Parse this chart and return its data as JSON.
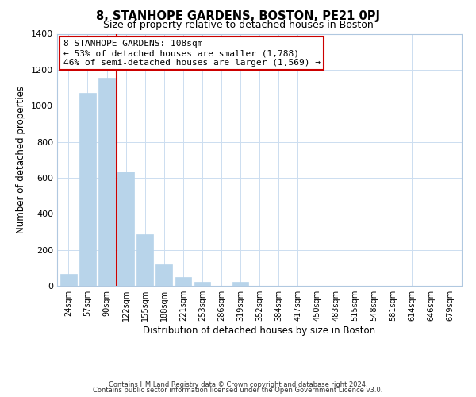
{
  "title": "8, STANHOPE GARDENS, BOSTON, PE21 0PJ",
  "subtitle": "Size of property relative to detached houses in Boston",
  "xlabel": "Distribution of detached houses by size in Boston",
  "ylabel": "Number of detached properties",
  "categories": [
    "24sqm",
    "57sqm",
    "90sqm",
    "122sqm",
    "155sqm",
    "188sqm",
    "221sqm",
    "253sqm",
    "286sqm",
    "319sqm",
    "352sqm",
    "384sqm",
    "417sqm",
    "450sqm",
    "483sqm",
    "515sqm",
    "548sqm",
    "581sqm",
    "614sqm",
    "646sqm",
    "679sqm"
  ],
  "values": [
    65,
    1070,
    1155,
    635,
    285,
    120,
    48,
    22,
    0,
    22,
    0,
    0,
    0,
    0,
    0,
    0,
    0,
    0,
    0,
    0,
    0
  ],
  "bar_color": "#b8d4ea",
  "bar_edge_color": "#b8d4ea",
  "vline_x": 2.5,
  "vline_color": "#cc0000",
  "annotation_title": "8 STANHOPE GARDENS: 108sqm",
  "annotation_line1": "← 53% of detached houses are smaller (1,788)",
  "annotation_line2": "46% of semi-detached houses are larger (1,569) →",
  "annotation_box_color": "#ffffff",
  "annotation_box_edge": "#cc0000",
  "ylim": [
    0,
    1400
  ],
  "yticks": [
    0,
    200,
    400,
    600,
    800,
    1000,
    1200,
    1400
  ],
  "footer1": "Contains HM Land Registry data © Crown copyright and database right 2024.",
  "footer2": "Contains public sector information licensed under the Open Government Licence v3.0.",
  "bg_color": "#ffffff",
  "grid_color": "#ccddf0",
  "title_fontsize": 10.5,
  "subtitle_fontsize": 9,
  "annotation_fontsize": 8,
  "ylabel_fontsize": 8.5,
  "xlabel_fontsize": 8.5,
  "footer_fontsize": 6,
  "ytick_fontsize": 8,
  "xtick_fontsize": 7
}
